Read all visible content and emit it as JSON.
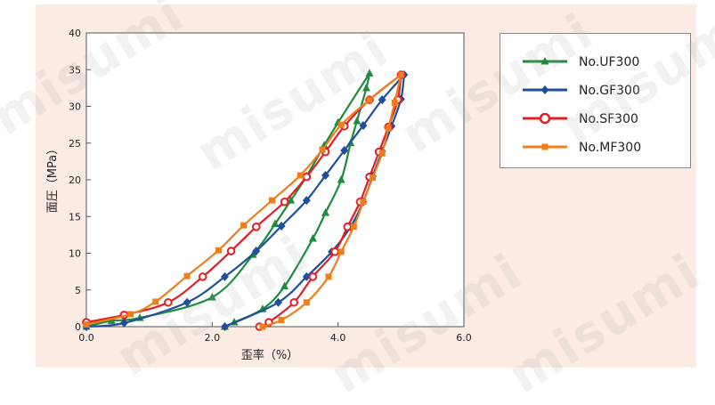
{
  "chart_data": {
    "type": "line",
    "title": "",
    "xlabel": "歪率（%）",
    "ylabel": "面圧（MPa）",
    "xlim": [
      0,
      6
    ],
    "ylim": [
      0,
      40
    ],
    "xticks": [
      0,
      2,
      4,
      6
    ],
    "xtick_labels": [
      "0.0",
      "2.0",
      "4.0",
      "6.0"
    ],
    "yticks": [
      0,
      5,
      10,
      15,
      20,
      25,
      30,
      35,
      40
    ],
    "ytick_labels": [
      "0",
      "5",
      "10",
      "15",
      "20",
      "25",
      "30",
      "35",
      "40"
    ],
    "grid": false,
    "legend_position": "top-right",
    "series": [
      {
        "name": "No.UF300",
        "color": "#1e8c3a",
        "marker": "triangle",
        "loading": [
          [
            0,
            0
          ],
          [
            0.4,
            0.8
          ],
          [
            0.85,
            1.2
          ],
          [
            2.0,
            4.0
          ],
          [
            2.65,
            9.8
          ],
          [
            3.0,
            14.0
          ],
          [
            3.25,
            17.2
          ],
          [
            3.5,
            20.5
          ],
          [
            3.78,
            24.7
          ],
          [
            4.0,
            27.8
          ],
          [
            4.5,
            34.5
          ]
        ],
        "unloading": [
          [
            4.5,
            34.5
          ],
          [
            4.45,
            32.5
          ],
          [
            4.3,
            28.0
          ],
          [
            4.2,
            25.0
          ],
          [
            4.05,
            20.0
          ],
          [
            3.8,
            15.5
          ],
          [
            3.6,
            12.0
          ],
          [
            3.15,
            5.5
          ],
          [
            2.8,
            2.4
          ],
          [
            2.35,
            0.6
          ],
          [
            2.2,
            0
          ]
        ]
      },
      {
        "name": "No.GF300",
        "color": "#1f4e9c",
        "marker": "diamond",
        "loading": [
          [
            0,
            0
          ],
          [
            0.6,
            0.5
          ],
          [
            1.6,
            3.3
          ],
          [
            2.2,
            6.8
          ],
          [
            2.7,
            10.3
          ],
          [
            3.1,
            13.7
          ],
          [
            3.5,
            17.2
          ],
          [
            3.8,
            20.6
          ],
          [
            4.1,
            24.0
          ],
          [
            4.4,
            27.4
          ],
          [
            4.7,
            30.9
          ],
          [
            5.05,
            34.3
          ]
        ],
        "unloading": [
          [
            5.05,
            34.3
          ],
          [
            5.0,
            31.0
          ],
          [
            4.85,
            27.3
          ],
          [
            4.7,
            23.9
          ],
          [
            4.55,
            20.5
          ],
          [
            4.4,
            17.0
          ],
          [
            4.2,
            13.6
          ],
          [
            3.9,
            10.2
          ],
          [
            3.5,
            6.8
          ],
          [
            3.05,
            3.3
          ],
          [
            2.2,
            0
          ]
        ]
      },
      {
        "name": "No.SF300",
        "color": "#e31e24",
        "marker": "circle",
        "loading": [
          [
            0,
            0.6
          ],
          [
            0.6,
            1.6
          ],
          [
            1.3,
            3.3
          ],
          [
            1.85,
            6.8
          ],
          [
            2.3,
            10.3
          ],
          [
            2.7,
            13.6
          ],
          [
            3.15,
            17.0
          ],
          [
            3.5,
            20.4
          ],
          [
            3.8,
            23.8
          ],
          [
            4.1,
            27.3
          ],
          [
            4.5,
            30.9
          ],
          [
            5.0,
            34.3
          ]
        ],
        "unloading": [
          [
            5.0,
            34.3
          ],
          [
            4.95,
            30.9
          ],
          [
            4.8,
            27.2
          ],
          [
            4.65,
            23.8
          ],
          [
            4.5,
            20.4
          ],
          [
            4.35,
            17.0
          ],
          [
            4.15,
            13.6
          ],
          [
            3.95,
            10.2
          ],
          [
            3.6,
            6.8
          ],
          [
            3.3,
            3.3
          ],
          [
            2.9,
            0.6
          ],
          [
            2.75,
            0
          ]
        ]
      },
      {
        "name": "No.MF300",
        "color": "#f07d1c",
        "marker": "square",
        "loading": [
          [
            0,
            0.3
          ],
          [
            0.7,
            1.7
          ],
          [
            1.1,
            3.4
          ],
          [
            1.6,
            6.9
          ],
          [
            2.1,
            10.4
          ],
          [
            2.5,
            13.8
          ],
          [
            2.95,
            17.2
          ],
          [
            3.4,
            20.6
          ],
          [
            3.75,
            24.1
          ],
          [
            4.05,
            27.5
          ],
          [
            4.5,
            30.9
          ],
          [
            5.0,
            34.3
          ]
        ],
        "unloading": [
          [
            5.0,
            34.3
          ],
          [
            4.9,
            30.5
          ],
          [
            4.8,
            27.0
          ],
          [
            4.7,
            23.6
          ],
          [
            4.55,
            20.3
          ],
          [
            4.4,
            17.0
          ],
          [
            4.25,
            13.6
          ],
          [
            4.05,
            10.2
          ],
          [
            3.85,
            6.8
          ],
          [
            3.5,
            3.3
          ],
          [
            3.1,
            0.9
          ],
          [
            2.8,
            0
          ]
        ]
      }
    ]
  },
  "watermark_text": "misumi"
}
